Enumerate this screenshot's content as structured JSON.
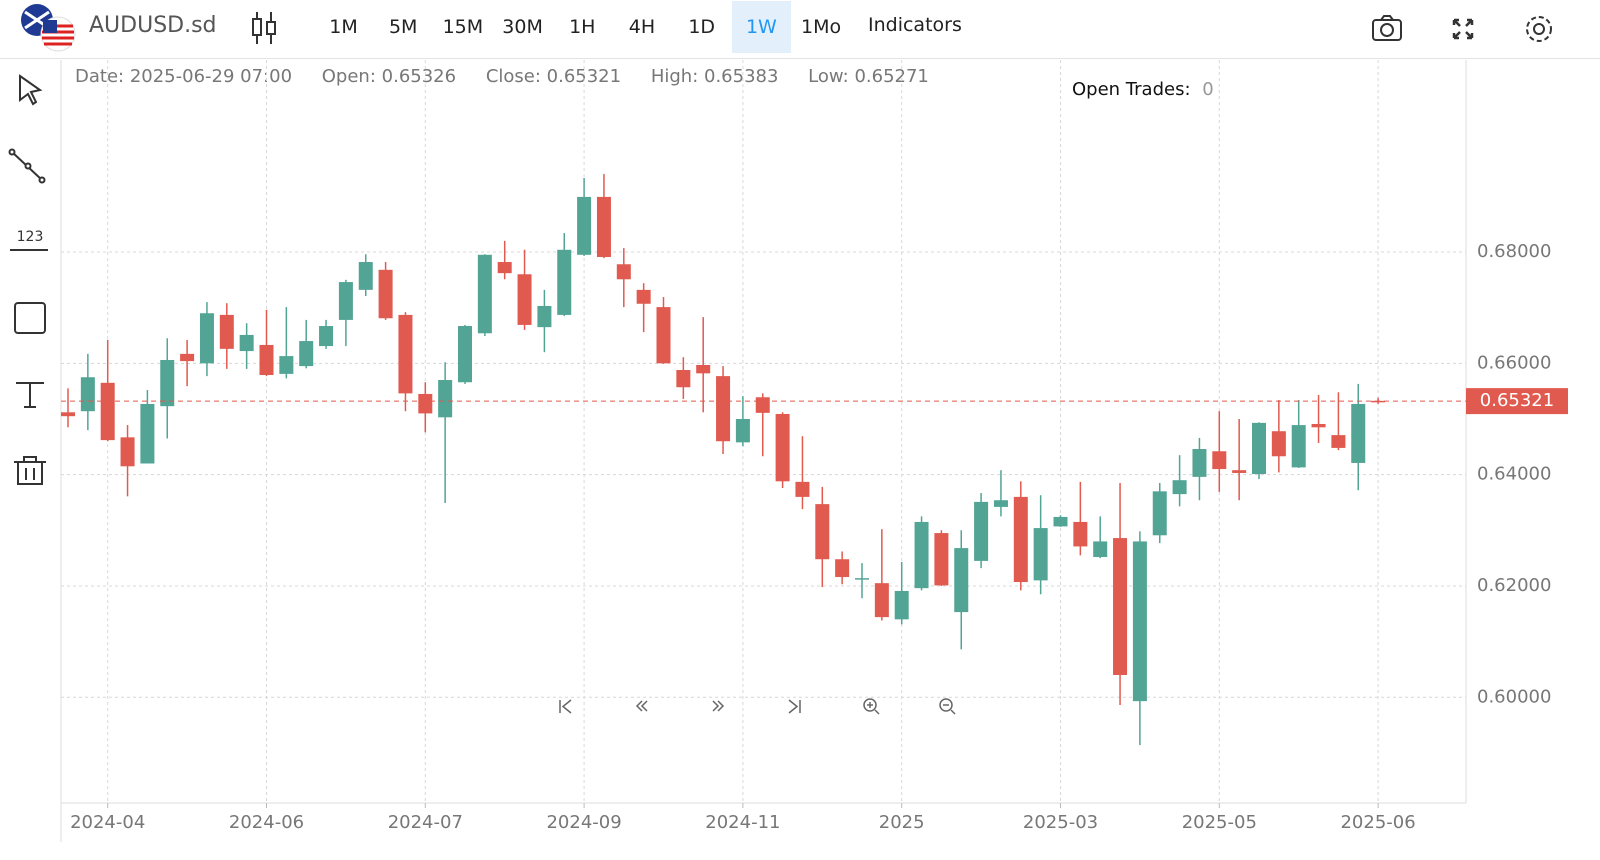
{
  "toolbar": {
    "symbol": "AUDUSD.sd",
    "timeframes": [
      "1M",
      "5M",
      "15M",
      "30M",
      "1H",
      "4H",
      "1D",
      "1W",
      "1Mo"
    ],
    "active": "1W",
    "indicators": "Indicators"
  },
  "info": {
    "date_label": "Date:",
    "date": "2025-06-29 07:00",
    "open_label": "Open:",
    "close_label": "Close:",
    "high_label": "High:",
    "low_label": "Low:"
  },
  "trades": {
    "label": "Open Trades:",
    "count": 0
  },
  "tools": {
    "numbers_icon": "123"
  },
  "chart_data": {
    "type": "candlestick",
    "categories": [
      null,
      null,
      "2024-04",
      null,
      null,
      null,
      null,
      null,
      null,
      null,
      "2024-06",
      null,
      null,
      null,
      null,
      null,
      null,
      null,
      "2024-07",
      null,
      null,
      null,
      null,
      null,
      null,
      null,
      "2024-09",
      null,
      null,
      null,
      null,
      null,
      null,
      null,
      "2024-11",
      null,
      null,
      null,
      null,
      null,
      null,
      null,
      "2025",
      null,
      null,
      null,
      null,
      null,
      null,
      null,
      "2025-03",
      null,
      null,
      null,
      null,
      null,
      null,
      null,
      "2025-05",
      null,
      null,
      null,
      null,
      null,
      null,
      null,
      "2025-06"
    ],
    "open": [
      0.6512,
      0.6514,
      0.6565,
      0.6467,
      0.642,
      0.6523,
      0.6617,
      0.66,
      0.6687,
      0.6622,
      0.6633,
      0.6581,
      0.6595,
      0.6631,
      0.6678,
      0.6732,
      0.6768,
      0.6687,
      0.6545,
      0.6503,
      0.6566,
      0.6654,
      0.6782,
      0.676,
      0.6665,
      0.6687,
      0.6795,
      0.6899,
      0.6778,
      0.6732,
      0.6701,
      0.6588,
      0.6597,
      0.6577,
      0.6458,
      0.6539,
      0.6509,
      0.6387,
      0.6347,
      0.6248,
      0.6212,
      0.6205,
      0.614,
      0.6196,
      0.6295,
      0.6153,
      0.6245,
      0.6342,
      0.636,
      0.621,
      0.6307,
      0.6315,
      0.6252,
      0.6286,
      0.5993,
      0.6291,
      0.6365,
      0.6396,
      0.6442,
      0.6408,
      0.6401,
      0.6478,
      0.6413,
      0.6491,
      0.6471,
      0.6421,
      0.65326
    ],
    "high": [
      0.6555,
      0.6617,
      0.6642,
      0.6489,
      0.6552,
      0.6645,
      0.6642,
      0.671,
      0.6708,
      0.6672,
      0.6696,
      0.6701,
      0.6678,
      0.6678,
      0.675,
      0.6796,
      0.6782,
      0.6692,
      0.6566,
      0.6602,
      0.6669,
      0.6796,
      0.682,
      0.6804,
      0.6732,
      0.6834,
      0.6933,
      0.694,
      0.6807,
      0.6744,
      0.6719,
      0.6611,
      0.6683,
      0.6595,
      0.6541,
      0.6546,
      0.6512,
      0.6469,
      0.6378,
      0.6262,
      0.6241,
      0.6302,
      0.6243,
      0.6325,
      0.63,
      0.63,
      0.6367,
      0.6408,
      0.6388,
      0.6363,
      0.6327,
      0.6387,
      0.6325,
      0.6385,
      0.6298,
      0.6385,
      0.6435,
      0.6466,
      0.6514,
      0.65,
      0.6494,
      0.6534,
      0.6534,
      0.6543,
      0.6548,
      0.6563,
      0.65383
    ],
    "low": [
      0.6485,
      0.648,
      0.646,
      0.6361,
      0.642,
      0.6465,
      0.6559,
      0.6577,
      0.659,
      0.659,
      0.6577,
      0.6573,
      0.6591,
      0.6626,
      0.6631,
      0.6721,
      0.6678,
      0.6514,
      0.6476,
      0.6349,
      0.6563,
      0.6649,
      0.6751,
      0.666,
      0.662,
      0.6685,
      0.6793,
      0.6789,
      0.6701,
      0.6656,
      0.6599,
      0.6536,
      0.6512,
      0.6437,
      0.6451,
      0.6433,
      0.6376,
      0.6338,
      0.6198,
      0.6203,
      0.6178,
      0.6138,
      0.6131,
      0.6192,
      0.62,
      0.6086,
      0.6232,
      0.6325,
      0.6192,
      0.6185,
      0.6306,
      0.6255,
      0.625,
      0.5986,
      0.5914,
      0.6277,
      0.6343,
      0.6354,
      0.6369,
      0.6354,
      0.6392,
      0.6404,
      0.6412,
      0.6457,
      0.6444,
      0.6372,
      0.65271
    ],
    "close": [
      0.6505,
      0.6575,
      0.6462,
      0.6415,
      0.6527,
      0.6606,
      0.6604,
      0.669,
      0.6626,
      0.6651,
      0.6579,
      0.6613,
      0.664,
      0.6667,
      0.6746,
      0.6782,
      0.6681,
      0.6546,
      0.651,
      0.657,
      0.6667,
      0.6795,
      0.6762,
      0.6669,
      0.6703,
      0.6804,
      0.6899,
      0.6791,
      0.6751,
      0.6707,
      0.66,
      0.6557,
      0.6582,
      0.646,
      0.65,
      0.6511,
      0.6388,
      0.636,
      0.6248,
      0.6216,
      0.6214,
      0.6144,
      0.6191,
      0.6315,
      0.6201,
      0.6268,
      0.6351,
      0.6354,
      0.6207,
      0.6304,
      0.6324,
      0.6271,
      0.628,
      0.604,
      0.628,
      0.637,
      0.639,
      0.6446,
      0.641,
      0.6403,
      0.6493,
      0.6433,
      0.6489,
      0.6485,
      0.6448,
      0.6527,
      0.65321
    ],
    "up_color": "#52a495",
    "down_color": "#e05a4f",
    "ylim": [
      0.581,
      0.7145
    ],
    "yticks": [
      {
        "value": 0.6,
        "label": "0.60000"
      },
      {
        "value": 0.62,
        "label": "0.62000"
      },
      {
        "value": 0.64,
        "label": "0.64000"
      },
      {
        "value": 0.66,
        "label": "0.66000"
      },
      {
        "value": 0.68,
        "label": "0.68000"
      }
    ],
    "grid": true,
    "last_price_line": true
  }
}
